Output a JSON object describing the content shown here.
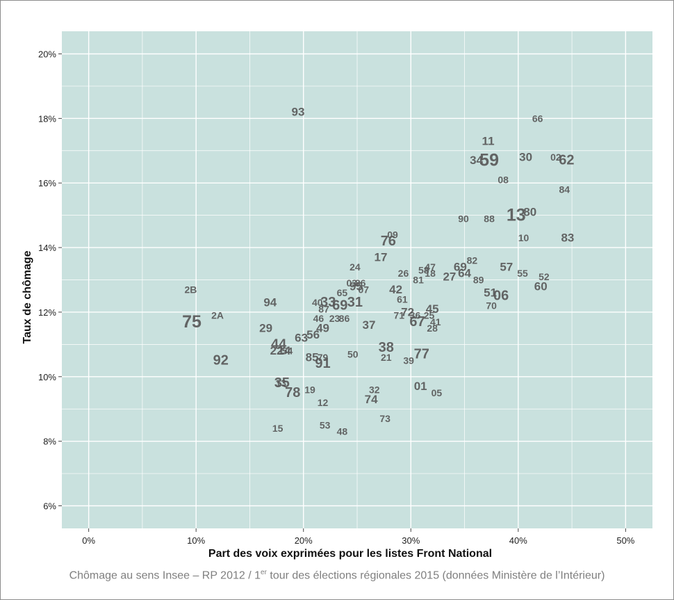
{
  "chart_data": {
    "type": "scatter",
    "xlabel": "Part des voix exprimées pour les listes Front National",
    "ylabel": "Taux de chômage",
    "xlim": [
      -2.5,
      52.5
    ],
    "ylim": [
      5.3,
      20.7
    ],
    "x_ticks": [
      0,
      10,
      20,
      30,
      40,
      50
    ],
    "x_tick_labels": [
      "0%",
      "10%",
      "20%",
      "30%",
      "40%",
      "50%"
    ],
    "y_ticks": [
      6,
      8,
      10,
      12,
      14,
      16,
      18,
      20
    ],
    "y_tick_labels": [
      "6%",
      "8%",
      "10%",
      "12%",
      "14%",
      "16%",
      "18%",
      "20%"
    ],
    "grid": true,
    "background_color": "#c9e1de",
    "label_color": "#595959",
    "point_label_note": "Each point is drawn as its department code; text size is proportional to department weight.",
    "points": [
      {
        "label": "93",
        "x": 19.5,
        "y": 18.2,
        "size": 3
      },
      {
        "label": "66",
        "x": 41.8,
        "y": 18.0,
        "size": 2
      },
      {
        "label": "11",
        "x": 37.2,
        "y": 17.3,
        "size": 3
      },
      {
        "label": "59",
        "x": 37.3,
        "y": 16.7,
        "size": 5
      },
      {
        "label": "34",
        "x": 36.1,
        "y": 16.7,
        "size": 3
      },
      {
        "label": "30",
        "x": 40.7,
        "y": 16.8,
        "size": 3
      },
      {
        "label": "02",
        "x": 43.5,
        "y": 16.8,
        "size": 2
      },
      {
        "label": "62",
        "x": 44.5,
        "y": 16.7,
        "size": 4
      },
      {
        "label": "08",
        "x": 38.6,
        "y": 16.1,
        "size": 2
      },
      {
        "label": "84",
        "x": 44.3,
        "y": 15.8,
        "size": 2
      },
      {
        "label": "13",
        "x": 39.8,
        "y": 15.0,
        "size": 5
      },
      {
        "label": "80",
        "x": 41.1,
        "y": 15.1,
        "size": 3
      },
      {
        "label": "90",
        "x": 34.9,
        "y": 14.9,
        "size": 2
      },
      {
        "label": "88",
        "x": 37.3,
        "y": 14.9,
        "size": 2
      },
      {
        "label": "09",
        "x": 28.3,
        "y": 14.4,
        "size": 2
      },
      {
        "label": "76",
        "x": 27.9,
        "y": 14.2,
        "size": 4
      },
      {
        "label": "10",
        "x": 40.5,
        "y": 14.3,
        "size": 2
      },
      {
        "label": "83",
        "x": 44.6,
        "y": 14.3,
        "size": 3
      },
      {
        "label": "17",
        "x": 27.2,
        "y": 13.7,
        "size": 3
      },
      {
        "label": "82",
        "x": 35.7,
        "y": 13.6,
        "size": 2
      },
      {
        "label": "24",
        "x": 24.8,
        "y": 13.4,
        "size": 2
      },
      {
        "label": "57",
        "x": 38.9,
        "y": 13.4,
        "size": 3
      },
      {
        "label": "47",
        "x": 31.8,
        "y": 13.4,
        "size": 2
      },
      {
        "label": "58",
        "x": 31.2,
        "y": 13.3,
        "size": 2
      },
      {
        "label": "69",
        "x": 34.6,
        "y": 13.4,
        "size": 3
      },
      {
        "label": "18",
        "x": 31.8,
        "y": 13.2,
        "size": 2
      },
      {
        "label": "26",
        "x": 29.3,
        "y": 13.2,
        "size": 2
      },
      {
        "label": "27",
        "x": 33.6,
        "y": 13.1,
        "size": 3
      },
      {
        "label": "64",
        "x": 35.0,
        "y": 13.2,
        "size": 3
      },
      {
        "label": "55",
        "x": 40.4,
        "y": 13.2,
        "size": 2
      },
      {
        "label": "52",
        "x": 42.4,
        "y": 13.1,
        "size": 2
      },
      {
        "label": "81",
        "x": 30.7,
        "y": 13.0,
        "size": 2
      },
      {
        "label": "89",
        "x": 36.3,
        "y": 13.0,
        "size": 2
      },
      {
        "label": "60",
        "x": 42.1,
        "y": 12.8,
        "size": 3
      },
      {
        "label": "03",
        "x": 24.5,
        "y": 12.9,
        "size": 2
      },
      {
        "label": "95",
        "x": 24.9,
        "y": 12.8,
        "size": 3
      },
      {
        "label": "86",
        "x": 25.3,
        "y": 12.9,
        "size": 2
      },
      {
        "label": "07",
        "x": 25.6,
        "y": 12.7,
        "size": 2
      },
      {
        "label": "42",
        "x": 28.6,
        "y": 12.7,
        "size": 3
      },
      {
        "label": "65",
        "x": 23.6,
        "y": 12.6,
        "size": 2
      },
      {
        "label": "51",
        "x": 37.4,
        "y": 12.6,
        "size": 3
      },
      {
        "label": "06",
        "x": 38.4,
        "y": 12.5,
        "size": 4
      },
      {
        "label": "2B",
        "x": 9.5,
        "y": 12.7,
        "size": 2
      },
      {
        "label": "40",
        "x": 21.3,
        "y": 12.3,
        "size": 2
      },
      {
        "label": "33",
        "x": 22.3,
        "y": 12.3,
        "size": 4
      },
      {
        "label": "61",
        "x": 29.2,
        "y": 12.4,
        "size": 2
      },
      {
        "label": "69",
        "x": 23.4,
        "y": 12.2,
        "size": 4
      },
      {
        "label": "31",
        "x": 24.8,
        "y": 12.3,
        "size": 4
      },
      {
        "label": "94",
        "x": 16.9,
        "y": 12.3,
        "size": 3
      },
      {
        "label": "87",
        "x": 21.9,
        "y": 12.1,
        "size": 2
      },
      {
        "label": "70",
        "x": 37.5,
        "y": 12.2,
        "size": 2
      },
      {
        "label": "72",
        "x": 29.7,
        "y": 12.0,
        "size": 3
      },
      {
        "label": "45",
        "x": 32.0,
        "y": 12.1,
        "size": 3
      },
      {
        "label": "2A",
        "x": 12.0,
        "y": 11.9,
        "size": 2
      },
      {
        "label": "71",
        "x": 28.9,
        "y": 11.9,
        "size": 2
      },
      {
        "label": "36",
        "x": 30.4,
        "y": 11.9,
        "size": 2
      },
      {
        "label": "25",
        "x": 31.7,
        "y": 11.9,
        "size": 2
      },
      {
        "label": "46",
        "x": 21.4,
        "y": 11.8,
        "size": 2
      },
      {
        "label": "23",
        "x": 22.9,
        "y": 11.8,
        "size": 2
      },
      {
        "label": "86",
        "x": 23.8,
        "y": 11.8,
        "size": 2
      },
      {
        "label": "75",
        "x": 9.6,
        "y": 11.7,
        "size": 5
      },
      {
        "label": "41",
        "x": 32.3,
        "y": 11.7,
        "size": 2
      },
      {
        "label": "67",
        "x": 30.6,
        "y": 11.7,
        "size": 4
      },
      {
        "label": "37",
        "x": 26.1,
        "y": 11.6,
        "size": 3
      },
      {
        "label": "29",
        "x": 16.5,
        "y": 11.5,
        "size": 3
      },
      {
        "label": "49",
        "x": 21.8,
        "y": 11.5,
        "size": 3
      },
      {
        "label": "28",
        "x": 32.0,
        "y": 11.5,
        "size": 2
      },
      {
        "label": "56",
        "x": 20.9,
        "y": 11.3,
        "size": 3
      },
      {
        "label": "63",
        "x": 19.8,
        "y": 11.2,
        "size": 3
      },
      {
        "label": "44",
        "x": 17.7,
        "y": 11.0,
        "size": 4
      },
      {
        "label": "38",
        "x": 27.7,
        "y": 10.9,
        "size": 4
      },
      {
        "label": "22",
        "x": 17.5,
        "y": 10.8,
        "size": 3
      },
      {
        "label": "14",
        "x": 18.2,
        "y": 10.8,
        "size": 3
      },
      {
        "label": "54",
        "x": 18.5,
        "y": 10.8,
        "size": 2
      },
      {
        "label": "77",
        "x": 31.0,
        "y": 10.7,
        "size": 4
      },
      {
        "label": "92",
        "x": 12.3,
        "y": 10.5,
        "size": 4
      },
      {
        "label": "85",
        "x": 20.8,
        "y": 10.6,
        "size": 3
      },
      {
        "label": "79",
        "x": 21.8,
        "y": 10.6,
        "size": 2
      },
      {
        "label": "50",
        "x": 24.6,
        "y": 10.7,
        "size": 2
      },
      {
        "label": "21",
        "x": 27.7,
        "y": 10.6,
        "size": 2
      },
      {
        "label": "39",
        "x": 29.8,
        "y": 10.5,
        "size": 2
      },
      {
        "label": "91",
        "x": 21.8,
        "y": 10.4,
        "size": 4
      },
      {
        "label": "35",
        "x": 18.0,
        "y": 9.8,
        "size": 4
      },
      {
        "label": "13",
        "x": 17.9,
        "y": 9.8,
        "size": 2
      },
      {
        "label": "01",
        "x": 30.9,
        "y": 9.7,
        "size": 3
      },
      {
        "label": "19",
        "x": 20.6,
        "y": 9.6,
        "size": 2
      },
      {
        "label": "32",
        "x": 26.6,
        "y": 9.6,
        "size": 2
      },
      {
        "label": "78",
        "x": 19.0,
        "y": 9.5,
        "size": 4
      },
      {
        "label": "05",
        "x": 32.4,
        "y": 9.5,
        "size": 2
      },
      {
        "label": "74",
        "x": 26.3,
        "y": 9.3,
        "size": 3
      },
      {
        "label": "12",
        "x": 21.8,
        "y": 9.2,
        "size": 2
      },
      {
        "label": "73",
        "x": 27.6,
        "y": 8.7,
        "size": 2
      },
      {
        "label": "53",
        "x": 22.0,
        "y": 8.5,
        "size": 2
      },
      {
        "label": "15",
        "x": 17.6,
        "y": 8.4,
        "size": 2
      },
      {
        "label": "48",
        "x": 23.6,
        "y": 8.3,
        "size": 2
      }
    ]
  },
  "caption": {
    "before": "Chômage au sens Insee  –  RP 2012 /  1",
    "superscript": "er",
    "after": " tour des élections régionales 2015 (données Ministère de l’Intérieur)"
  }
}
